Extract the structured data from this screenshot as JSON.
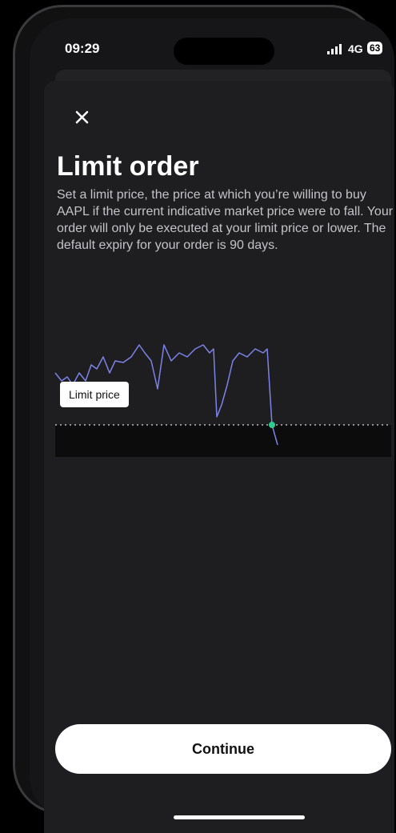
{
  "status_bar": {
    "time": "09:29",
    "network": "4G",
    "battery": "63"
  },
  "sheet": {
    "title": "Limit order",
    "description": "Set a limit price, the price at which you’re willing to buy AAPL if the current indicative market price were to fall. Your order will only be executed at your limit price or lower. The default expiry for your order is 90 days.",
    "chart_label": "Limit price",
    "button": "Continue"
  }
}
